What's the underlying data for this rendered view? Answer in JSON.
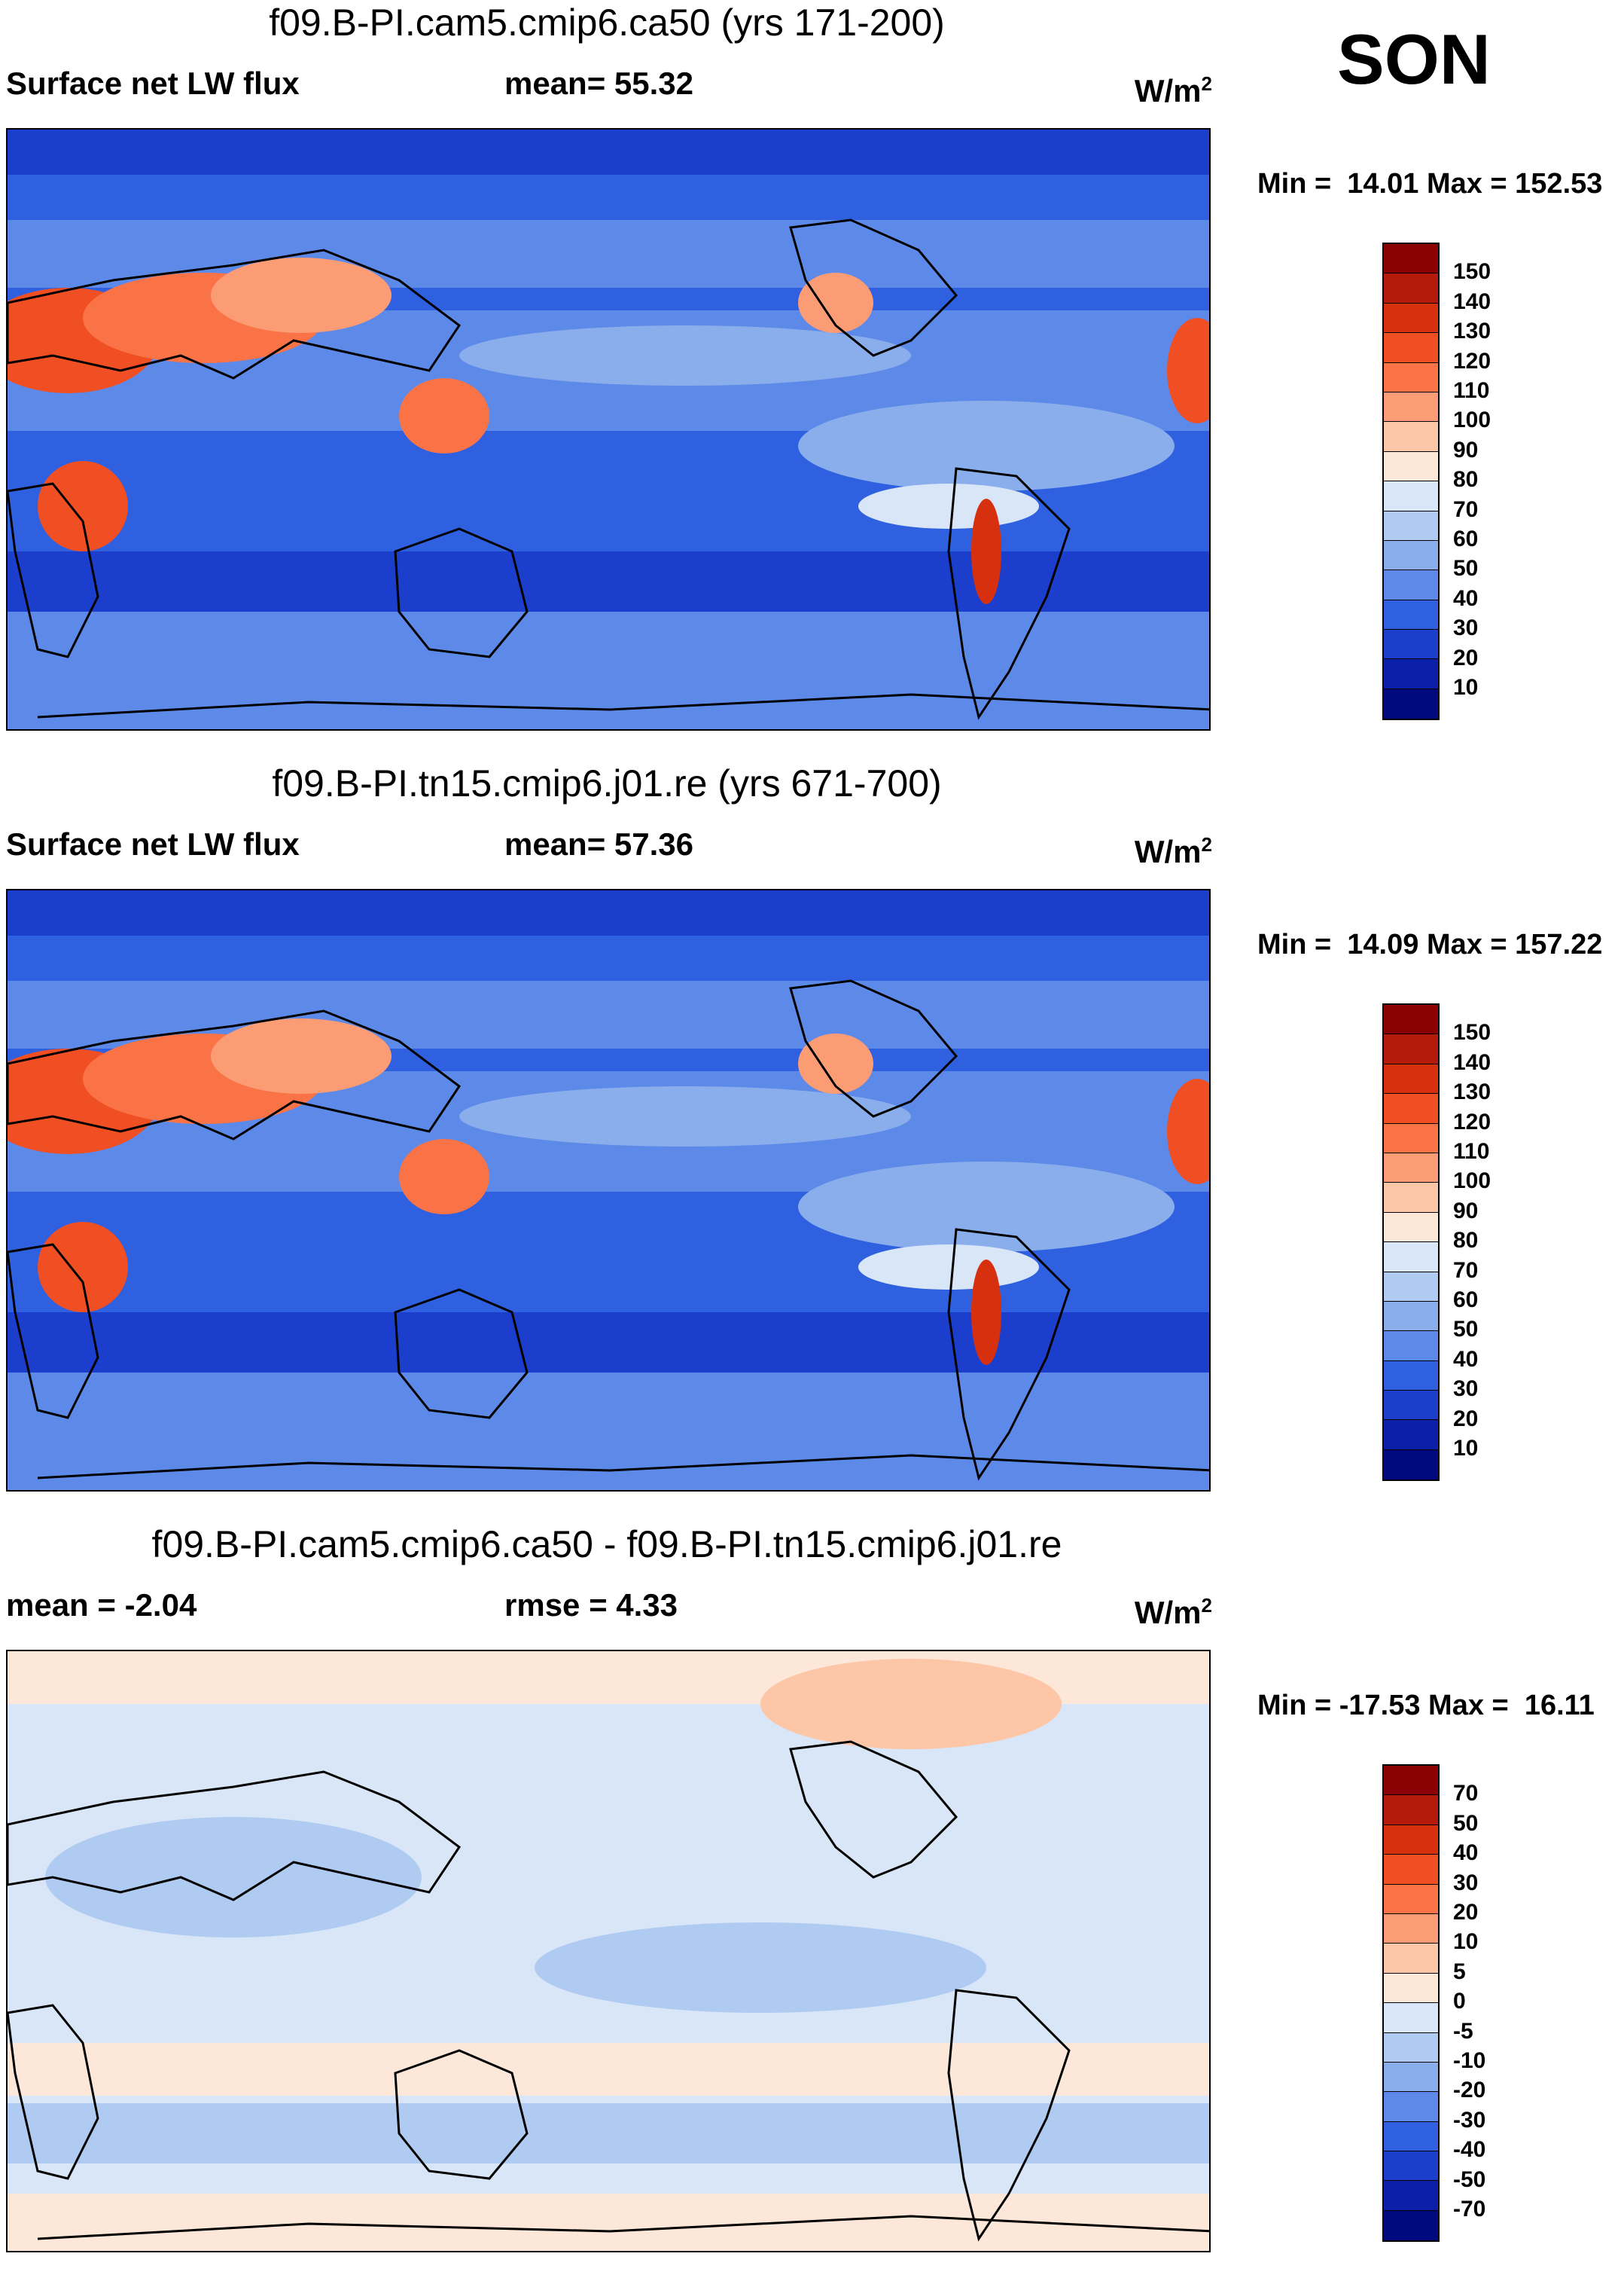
{
  "season": "SON",
  "units_main": "W/m",
  "units_sup": "2",
  "panels": [
    {
      "title": "f09.B-PI.cam5.cmip6.ca50 (yrs 171-200)",
      "left": "Surface net LW flux",
      "mid": "mean=  55.32",
      "minmax": "Min =  14.01 Max = 152.53",
      "colorbar_labels": [
        "150",
        "140",
        "130",
        "120",
        "110",
        "100",
        "90",
        "80",
        "70",
        "60",
        "50",
        "40",
        "30",
        "20",
        "10"
      ],
      "colorbar_colors": [
        "#8b0000",
        "#b41b0a",
        "#d7300f",
        "#ef4f23",
        "#fa7347",
        "#fc9c74",
        "#fdc6a7",
        "#fde7d9",
        "#d8e6f7",
        "#b0cbf1",
        "#8aaeeb",
        "#5d8ae8",
        "#2f60e0",
        "#1b3fcc",
        "#0c1fa8",
        "#000a7e"
      ],
      "chart_data": {
        "type": "heatmap",
        "title": "f09.B-PI.cam5.cmip6.ca50 (yrs 171-200)",
        "variable": "Surface net LW flux",
        "mean": 55.32,
        "min": 14.01,
        "max": 152.53,
        "levels": [
          10,
          20,
          30,
          40,
          50,
          60,
          70,
          80,
          90,
          100,
          110,
          120,
          130,
          140,
          150
        ]
      }
    },
    {
      "title": "f09.B-PI.tn15.cmip6.j01.re (yrs 671-700)",
      "left": "Surface net LW flux",
      "mid": "mean=  57.36",
      "minmax": "Min =  14.09 Max = 157.22",
      "colorbar_labels": [
        "150",
        "140",
        "130",
        "120",
        "110",
        "100",
        "90",
        "80",
        "70",
        "60",
        "50",
        "40",
        "30",
        "20",
        "10"
      ],
      "colorbar_colors": [
        "#8b0000",
        "#b41b0a",
        "#d7300f",
        "#ef4f23",
        "#fa7347",
        "#fc9c74",
        "#fdc6a7",
        "#fde7d9",
        "#d8e6f7",
        "#b0cbf1",
        "#8aaeeb",
        "#5d8ae8",
        "#2f60e0",
        "#1b3fcc",
        "#0c1fa8",
        "#000a7e"
      ],
      "chart_data": {
        "type": "heatmap",
        "title": "f09.B-PI.tn15.cmip6.j01.re (yrs 671-700)",
        "variable": "Surface net LW flux",
        "mean": 57.36,
        "min": 14.09,
        "max": 157.22,
        "levels": [
          10,
          20,
          30,
          40,
          50,
          60,
          70,
          80,
          90,
          100,
          110,
          120,
          130,
          140,
          150
        ]
      }
    },
    {
      "title": "f09.B-PI.cam5.cmip6.ca50 - f09.B-PI.tn15.cmip6.j01.re",
      "left": "mean =  -2.04",
      "mid": "rmse =    4.33",
      "minmax": "Min = -17.53 Max =  16.11",
      "colorbar_labels": [
        "70",
        "50",
        "40",
        "30",
        "20",
        "10",
        "5",
        "0",
        "-5",
        "-10",
        "-20",
        "-30",
        "-40",
        "-50",
        "-70"
      ],
      "colorbar_colors": [
        "#8b0000",
        "#b41b0a",
        "#d7300f",
        "#ef4f23",
        "#fa7347",
        "#fc9c74",
        "#fdc6a7",
        "#fde7d9",
        "#d8e6f7",
        "#b0cbf1",
        "#8aaeeb",
        "#5d8ae8",
        "#2f60e0",
        "#1b3fcc",
        "#0c1fa8",
        "#000a7e"
      ],
      "chart_data": {
        "type": "heatmap",
        "title": "f09.B-PI.cam5.cmip6.ca50 - f09.B-PI.tn15.cmip6.j01.re",
        "variable": "difference",
        "mean": -2.04,
        "rmse": 4.33,
        "min": -17.53,
        "max": 16.11,
        "levels": [
          -70,
          -50,
          -40,
          -30,
          -20,
          -10,
          -5,
          0,
          5,
          10,
          20,
          30,
          40,
          50,
          70
        ]
      }
    }
  ]
}
